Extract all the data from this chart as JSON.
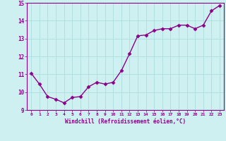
{
  "x": [
    0,
    1,
    2,
    3,
    4,
    5,
    6,
    7,
    8,
    9,
    10,
    11,
    12,
    13,
    14,
    15,
    16,
    17,
    18,
    19,
    20,
    21,
    22,
    23
  ],
  "y": [
    11.05,
    10.45,
    9.75,
    9.6,
    9.4,
    9.7,
    9.75,
    10.3,
    10.55,
    10.45,
    10.55,
    11.2,
    12.15,
    13.15,
    13.2,
    13.45,
    13.55,
    13.55,
    13.75,
    13.75,
    13.55,
    13.75,
    14.55,
    14.85
  ],
  "line_color": "#8b008b",
  "marker": "D",
  "marker_size": 2.5,
  "bg_color": "#cff0f0",
  "grid_color": "#aadddd",
  "xlabel": "Windchill (Refroidissement éolien,°C)",
  "title": "",
  "ylim": [
    9,
    15
  ],
  "xlim": [
    -0.5,
    23.5
  ],
  "yticks": [
    9,
    10,
    11,
    12,
    13,
    14,
    15
  ],
  "xticks": [
    0,
    1,
    2,
    3,
    4,
    5,
    6,
    7,
    8,
    9,
    10,
    11,
    12,
    13,
    14,
    15,
    16,
    17,
    18,
    19,
    20,
    21,
    22,
    23
  ],
  "xtick_labels": [
    "0",
    "1",
    "2",
    "3",
    "4",
    "5",
    "6",
    "7",
    "8",
    "9",
    "10",
    "11",
    "12",
    "13",
    "14",
    "15",
    "16",
    "17",
    "18",
    "19",
    "20",
    "21",
    "22",
    "23"
  ],
  "xlabel_color": "#8b008b",
  "tick_color": "#8b008b",
  "axis_color": "#8b008b",
  "linewidth": 1.0
}
